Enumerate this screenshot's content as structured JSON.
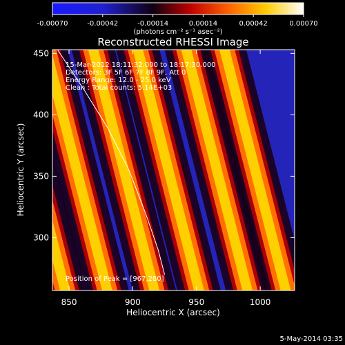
{
  "chart_data": {
    "type": "heatmap",
    "title": "Reconstructed RHESSI Image",
    "xlabel": "Heliocentric X (arcsec)",
    "ylabel": "Heliocentric Y (arcsec)",
    "xlim": [
      837,
      1027
    ],
    "ylim": [
      257,
      453
    ],
    "x_ticks": [
      850,
      900,
      950,
      1000
    ],
    "y_ticks": [
      300,
      350,
      400,
      450
    ],
    "colorbar": {
      "min": -0.0007,
      "max": 0.0007,
      "ticks": [
        "-0.00070",
        "-0.00042",
        "-0.00014",
        "0.00014",
        "0.00042",
        "0.00070"
      ],
      "label": "(photons cm⁻² s⁻¹ asec⁻²)",
      "colors": [
        "#0000ff",
        "#000000",
        "#ff0000",
        "#ffa500",
        "#ffff00",
        "#ffffff"
      ]
    },
    "annotations": [
      "15-Mar-2012 18:11:32.000 to 18:17:30.000",
      "Detectors: 3F 5F 6F 7F 8F 9F, Att 0",
      "Energy Range: 12.0 - 25.0 keV",
      "Clean :  Total counts: 5.14E+03"
    ],
    "peak_label": "Position of Peak = [967,280]",
    "stripes": {
      "x_at_ymin": [
        847,
        880,
        917,
        952,
        990,
        1020
      ],
      "x_shift_over_range": -48,
      "period_arcsec": 36
    },
    "limb_curve": {
      "points": [
        [
          841,
          453
        ],
        [
          862,
          420
        ],
        [
          880,
          390
        ],
        [
          897,
          355
        ],
        [
          910,
          320
        ],
        [
          920,
          290
        ],
        [
          925,
          270
        ]
      ]
    }
  },
  "footer": {
    "date": "5-May-2014 03:35"
  }
}
